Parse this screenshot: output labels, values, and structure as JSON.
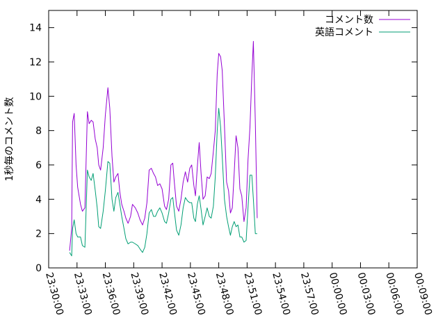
{
  "chart_data": {
    "type": "line",
    "title": "",
    "xlabel": "",
    "ylabel": "1秒毎のコメント数",
    "ylim": [
      0,
      15
    ],
    "yticks": [
      0,
      2,
      4,
      6,
      8,
      10,
      12,
      14
    ],
    "xlim_seconds": [
      0,
      2340
    ],
    "xticks": [
      {
        "value": 0,
        "label": "23:30:00"
      },
      {
        "value": 180,
        "label": "23:33:00"
      },
      {
        "value": 360,
        "label": "23:36:00"
      },
      {
        "value": 540,
        "label": "23:39:00"
      },
      {
        "value": 720,
        "label": "23:42:00"
      },
      {
        "value": 900,
        "label": "23:45:00"
      },
      {
        "value": 1080,
        "label": "23:48:00"
      },
      {
        "value": 1260,
        "label": "23:51:00"
      },
      {
        "value": 1440,
        "label": "23:54:00"
      },
      {
        "value": 1620,
        "label": "23:57:00"
      },
      {
        "value": 1800,
        "label": "00:00:00"
      },
      {
        "value": 1980,
        "label": "00:03:00"
      },
      {
        "value": 2160,
        "label": "00:06:00"
      },
      {
        "value": 2340,
        "label": "00:09:00"
      }
    ],
    "grid": false,
    "legend_position": "top-right",
    "series": [
      {
        "name": "コメント数",
        "color": "#9400d3",
        "points": [
          [
            133,
            1.0
          ],
          [
            146,
            2.3
          ],
          [
            152,
            8.5
          ],
          [
            162,
            9.0
          ],
          [
            174,
            6.0
          ],
          [
            184,
            4.7
          ],
          [
            202,
            3.7
          ],
          [
            214,
            3.3
          ],
          [
            230,
            3.5
          ],
          [
            246,
            9.1
          ],
          [
            257,
            8.4
          ],
          [
            270,
            8.6
          ],
          [
            282,
            8.5
          ],
          [
            296,
            7.5
          ],
          [
            308,
            7.0
          ],
          [
            318,
            6.0
          ],
          [
            330,
            5.7
          ],
          [
            346,
            7.0
          ],
          [
            360,
            8.9
          ],
          [
            376,
            10.5
          ],
          [
            388,
            9.3
          ],
          [
            402,
            6.5
          ],
          [
            414,
            5.0
          ],
          [
            426,
            5.3
          ],
          [
            440,
            5.5
          ],
          [
            452,
            4.4
          ],
          [
            464,
            3.7
          ],
          [
            478,
            3.3
          ],
          [
            490,
            2.9
          ],
          [
            504,
            2.6
          ],
          [
            520,
            3.0
          ],
          [
            532,
            3.7
          ],
          [
            550,
            3.5
          ],
          [
            566,
            3.2
          ],
          [
            580,
            2.8
          ],
          [
            596,
            2.5
          ],
          [
            610,
            2.9
          ],
          [
            624,
            3.8
          ],
          [
            638,
            5.7
          ],
          [
            652,
            5.8
          ],
          [
            666,
            5.5
          ],
          [
            678,
            5.3
          ],
          [
            692,
            4.8
          ],
          [
            706,
            4.9
          ],
          [
            720,
            4.6
          ],
          [
            736,
            3.6
          ],
          [
            748,
            3.4
          ],
          [
            762,
            4.0
          ],
          [
            776,
            6.0
          ],
          [
            788,
            6.1
          ],
          [
            798,
            5.0
          ],
          [
            812,
            3.6
          ],
          [
            826,
            3.3
          ],
          [
            840,
            4.0
          ],
          [
            854,
            5.0
          ],
          [
            868,
            5.6
          ],
          [
            882,
            5.0
          ],
          [
            896,
            5.8
          ],
          [
            908,
            6.0
          ],
          [
            922,
            4.8
          ],
          [
            932,
            4.2
          ],
          [
            944,
            5.9
          ],
          [
            956,
            7.3
          ],
          [
            968,
            5.5
          ],
          [
            980,
            4.0
          ],
          [
            994,
            4.2
          ],
          [
            1006,
            5.3
          ],
          [
            1020,
            5.2
          ],
          [
            1032,
            5.5
          ],
          [
            1046,
            6.8
          ],
          [
            1058,
            8.0
          ],
          [
            1070,
            11.3
          ],
          [
            1080,
            12.5
          ],
          [
            1092,
            12.3
          ],
          [
            1102,
            11.5
          ],
          [
            1116,
            8.3
          ],
          [
            1130,
            5.0
          ],
          [
            1142,
            4.5
          ],
          [
            1154,
            3.2
          ],
          [
            1166,
            3.5
          ],
          [
            1178,
            5.5
          ],
          [
            1190,
            7.7
          ],
          [
            1202,
            7.0
          ],
          [
            1214,
            4.6
          ],
          [
            1226,
            4.2
          ],
          [
            1240,
            2.7
          ],
          [
            1254,
            3.5
          ],
          [
            1266,
            6.3
          ],
          [
            1278,
            8.2
          ],
          [
            1290,
            11.2
          ],
          [
            1300,
            13.2
          ],
          [
            1312,
            8.5
          ],
          [
            1324,
            2.9
          ]
        ]
      },
      {
        "name": "英語コメント",
        "color": "#009e73",
        "points": [
          [
            133,
            0.9
          ],
          [
            146,
            0.7
          ],
          [
            152,
            2.3
          ],
          [
            162,
            2.8
          ],
          [
            174,
            2.0
          ],
          [
            184,
            1.8
          ],
          [
            202,
            1.8
          ],
          [
            214,
            1.3
          ],
          [
            230,
            1.2
          ],
          [
            246,
            5.7
          ],
          [
            257,
            5.3
          ],
          [
            270,
            5.1
          ],
          [
            282,
            5.5
          ],
          [
            296,
            4.5
          ],
          [
            308,
            3.5
          ],
          [
            318,
            2.4
          ],
          [
            330,
            2.3
          ],
          [
            346,
            3.3
          ],
          [
            360,
            4.5
          ],
          [
            376,
            6.2
          ],
          [
            388,
            6.1
          ],
          [
            402,
            4.0
          ],
          [
            414,
            3.3
          ],
          [
            426,
            4.1
          ],
          [
            440,
            4.4
          ],
          [
            452,
            3.7
          ],
          [
            464,
            3.0
          ],
          [
            478,
            2.3
          ],
          [
            490,
            1.7
          ],
          [
            504,
            1.4
          ],
          [
            520,
            1.5
          ],
          [
            532,
            1.5
          ],
          [
            550,
            1.4
          ],
          [
            566,
            1.3
          ],
          [
            580,
            1.1
          ],
          [
            596,
            0.9
          ],
          [
            610,
            1.2
          ],
          [
            624,
            2.0
          ],
          [
            638,
            3.2
          ],
          [
            652,
            3.4
          ],
          [
            666,
            3.0
          ],
          [
            678,
            3.0
          ],
          [
            692,
            3.3
          ],
          [
            706,
            3.5
          ],
          [
            720,
            3.2
          ],
          [
            736,
            2.7
          ],
          [
            748,
            2.6
          ],
          [
            762,
            3.2
          ],
          [
            776,
            4.0
          ],
          [
            788,
            4.1
          ],
          [
            798,
            3.3
          ],
          [
            812,
            2.2
          ],
          [
            826,
            1.9
          ],
          [
            840,
            2.5
          ],
          [
            854,
            3.5
          ],
          [
            868,
            4.1
          ],
          [
            882,
            3.9
          ],
          [
            896,
            3.8
          ],
          [
            908,
            3.8
          ],
          [
            922,
            2.9
          ],
          [
            932,
            2.7
          ],
          [
            944,
            3.7
          ],
          [
            956,
            4.2
          ],
          [
            968,
            3.4
          ],
          [
            980,
            2.5
          ],
          [
            994,
            3.0
          ],
          [
            1006,
            3.5
          ],
          [
            1020,
            3.0
          ],
          [
            1032,
            2.9
          ],
          [
            1046,
            3.6
          ],
          [
            1058,
            5.3
          ],
          [
            1070,
            8.0
          ],
          [
            1080,
            9.3
          ],
          [
            1092,
            8.2
          ],
          [
            1102,
            6.5
          ],
          [
            1116,
            4.0
          ],
          [
            1130,
            3.0
          ],
          [
            1142,
            2.4
          ],
          [
            1154,
            1.9
          ],
          [
            1166,
            2.4
          ],
          [
            1178,
            2.7
          ],
          [
            1190,
            2.4
          ],
          [
            1202,
            2.5
          ],
          [
            1214,
            1.8
          ],
          [
            1226,
            1.8
          ],
          [
            1240,
            1.5
          ],
          [
            1254,
            1.6
          ],
          [
            1266,
            3.5
          ],
          [
            1278,
            5.4
          ],
          [
            1290,
            5.4
          ],
          [
            1300,
            4.0
          ],
          [
            1312,
            2.0
          ],
          [
            1324,
            2.0
          ]
        ]
      }
    ]
  }
}
